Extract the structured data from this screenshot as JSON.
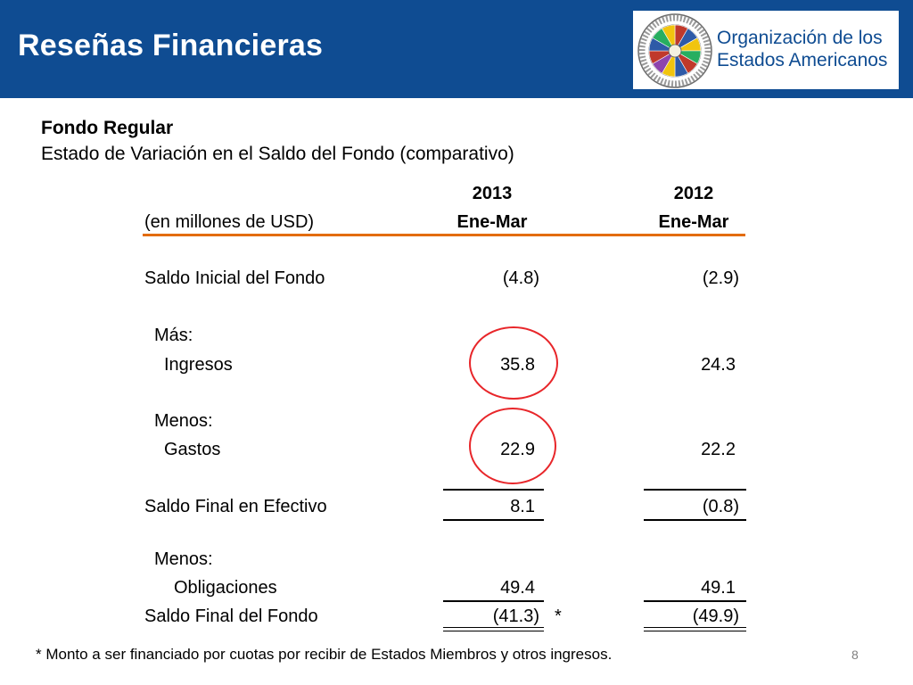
{
  "header": {
    "title": "Reseñas Financieras",
    "org_line1": "Organización de los",
    "org_line2": "Estados Americanos",
    "background_color": "#0f4c92",
    "logo_icon": "oas-seal-icon"
  },
  "subtitle": {
    "fund": "Fondo Regular",
    "statement": "Estado de Variación en el Saldo del Fondo (comparativo)"
  },
  "table": {
    "unit_label": "(en millones de USD)",
    "columns": [
      {
        "year": "2013",
        "period": "Ene-Mar"
      },
      {
        "year": "2012",
        "period": "Ene-Mar"
      }
    ],
    "rows": {
      "saldo_inicial": {
        "label": "Saldo Inicial del Fondo",
        "v2013": "(4.8)",
        "v2012": "(2.9)"
      },
      "mas": {
        "label": "Más:"
      },
      "ingresos": {
        "label": "Ingresos",
        "v2013": "35.8",
        "v2012": "24.3"
      },
      "menos1": {
        "label": "Menos:"
      },
      "gastos": {
        "label": "Gastos",
        "v2013": "22.9",
        "v2012": "22.2"
      },
      "saldo_efectivo": {
        "label": "Saldo Final en Efectivo",
        "v2013": "8.1",
        "v2012": "(0.8)"
      },
      "menos2": {
        "label": "Menos:"
      },
      "obligaciones": {
        "label": "Obligaciones",
        "v2013": "49.4",
        "v2012": "49.1"
      },
      "saldo_final": {
        "label": "Saldo Final del Fondo",
        "v2013": "(41.3)",
        "v2012": "(49.9)",
        "marker": "*"
      }
    },
    "header_rule_color": "#e36c0a",
    "highlight_color": "#e8262a"
  },
  "footnote": "* Monto a ser financiado por cuotas por recibir de Estados Miembros y otros ingresos.",
  "page_number": "8"
}
